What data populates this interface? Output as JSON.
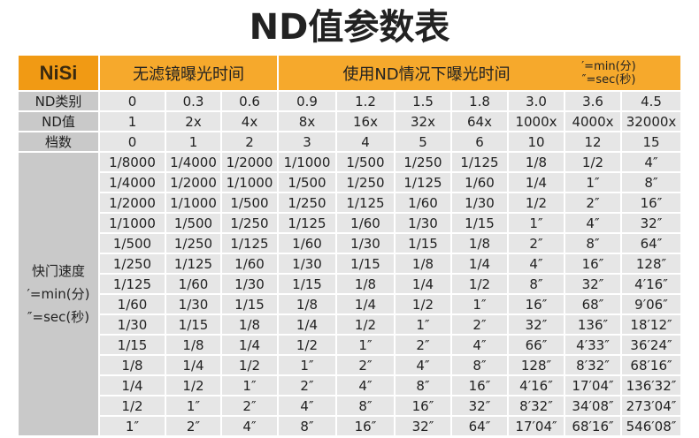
{
  "title": "ND值参数表",
  "header": {
    "logo": "NiSi",
    "no_filter": "无滤镜曝光时间",
    "with_nd": "使用ND情况下曝光时间",
    "notes": [
      "′=min(分)",
      "″=sec(秒)"
    ]
  },
  "table": {
    "row_labels": [
      "ND类别",
      "ND值",
      "档数"
    ],
    "rows": [
      [
        "0",
        "0.3",
        "0.6",
        "0.9",
        "1.2",
        "1.5",
        "1.8",
        "3.0",
        "3.6",
        "4.5"
      ],
      [
        "1",
        "2x",
        "4x",
        "8x",
        "16x",
        "32x",
        "64x",
        "1000x",
        "4000x",
        "32000x"
      ],
      [
        "0",
        "1",
        "2",
        "3",
        "4",
        "5",
        "6",
        "10",
        "12",
        "15"
      ]
    ],
    "speed_label": [
      "快门速度",
      "′=min(分)",
      "″=sec(秒)"
    ],
    "speeds": [
      [
        "1/8000",
        "1/4000",
        "1/2000",
        "1/1000",
        "1/500",
        "1/250",
        "1/125",
        "1/8",
        "1/2",
        "4″"
      ],
      [
        "1/4000",
        "1/2000",
        "1/1000",
        "1/500",
        "1/250",
        "1/125",
        "1/60",
        "1/4",
        "1″",
        "8″"
      ],
      [
        "1/2000",
        "1/1000",
        "1/500",
        "1/250",
        "1/125",
        "1/60",
        "1/30",
        "1/2",
        "2″",
        "16″"
      ],
      [
        "1/1000",
        "1/500",
        "1/250",
        "1/125",
        "1/60",
        "1/30",
        "1/15",
        "1″",
        "4″",
        "32″"
      ],
      [
        "1/500",
        "1/250",
        "1/125",
        "1/60",
        "1/30",
        "1/15",
        "1/8",
        "2″",
        "8″",
        "64″"
      ],
      [
        "1/250",
        "1/125",
        "1/60",
        "1/30",
        "1/15",
        "1/8",
        "1/4",
        "4″",
        "16″",
        "128″"
      ],
      [
        "1/125",
        "1/60",
        "1/30",
        "1/15",
        "1/8",
        "1/4",
        "1/2",
        "8″",
        "32″",
        "4′16″"
      ],
      [
        "1/60",
        "1/30",
        "1/15",
        "1/8",
        "1/4",
        "1/2",
        "1″",
        "16″",
        "68″",
        "9′06″"
      ],
      [
        "1/30",
        "1/15",
        "1/8",
        "1/4",
        "1/2",
        "1″",
        "2″",
        "32″",
        "136″",
        "18′12″"
      ],
      [
        "1/15",
        "1/8",
        "1/4",
        "1/2",
        "1″",
        "2″",
        "4″",
        "66″",
        "4′33″",
        "36′24″"
      ],
      [
        "1/8",
        "1/4",
        "1/2",
        "1″",
        "2″",
        "4″",
        "8″",
        "128″",
        "8′32″",
        "68′16″"
      ],
      [
        "1/4",
        "1/2",
        "1″",
        "2″",
        "4″",
        "8″",
        "16″",
        "4′16″",
        "17′04″",
        "136′32″"
      ],
      [
        "1/2",
        "1″",
        "2″",
        "4″",
        "8″",
        "16″",
        "32″",
        "8′32″",
        "34′08″",
        "273′04″"
      ],
      [
        "1″",
        "2″",
        "4″",
        "8″",
        "16″",
        "32″",
        "64″",
        "17′04″",
        "68′16″",
        "546′08″"
      ]
    ]
  }
}
